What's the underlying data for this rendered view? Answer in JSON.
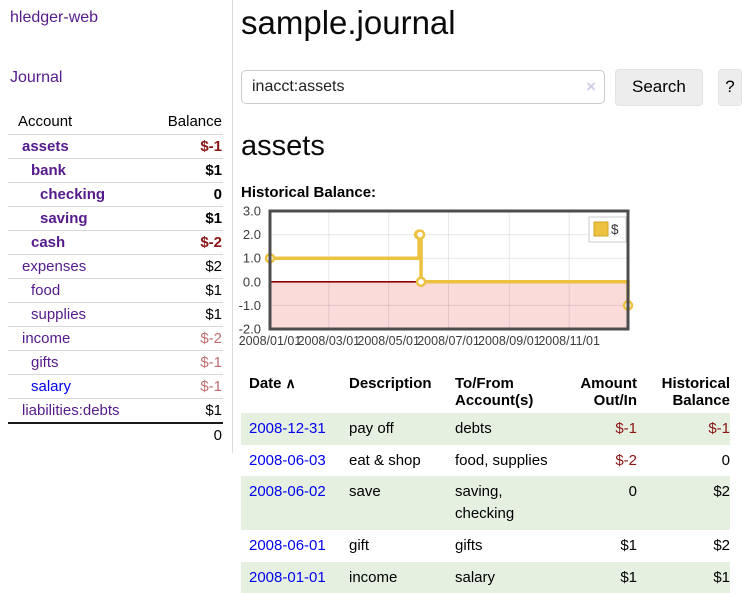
{
  "sidebar": {
    "brand": "hledger-web",
    "nav": {
      "journal": "Journal"
    },
    "accounts_table": {
      "headers": {
        "account": "Account",
        "balance": "Balance"
      },
      "rows": [
        {
          "name": "assets",
          "balance": "$-1"
        },
        {
          "name": "bank",
          "balance": "$1"
        },
        {
          "name": "checking",
          "balance": "0"
        },
        {
          "name": "saving",
          "balance": "$1"
        },
        {
          "name": "cash",
          "balance": "$-2"
        },
        {
          "name": "expenses",
          "balance": "$2"
        },
        {
          "name": "food",
          "balance": "$1"
        },
        {
          "name": "supplies",
          "balance": "$1"
        },
        {
          "name": "income",
          "balance": "$-2"
        },
        {
          "name": "gifts",
          "balance": "$-1"
        },
        {
          "name": "salary",
          "balance": "$-1"
        },
        {
          "name": "liabilities:debts",
          "balance": "$1"
        }
      ],
      "total": "0"
    }
  },
  "main": {
    "title": "sample.journal",
    "search": {
      "value": "inacct:assets",
      "clear_icon": "×",
      "search_button": "Search",
      "help_button": "?"
    },
    "account_heading": "assets",
    "chart_heading": "Historical Balance:",
    "register": {
      "headers": {
        "date": "Date",
        "sort_icon": "∧",
        "description": "Description",
        "accounts": "To/From Account(s)",
        "amount": "Amount Out/In",
        "balance": "Historical Balance"
      },
      "rows": [
        {
          "date": "2008-12-31",
          "description": "pay off",
          "accounts": "debts",
          "amount": "$-1",
          "balance": "$-1"
        },
        {
          "date": "2008-06-03",
          "description": "eat & shop",
          "accounts": "food, supplies",
          "amount": "$-2",
          "balance": "0"
        },
        {
          "date": "2008-06-02",
          "description": "save",
          "accounts": "saving, checking",
          "amount": "0",
          "balance": "$2"
        },
        {
          "date": "2008-06-01",
          "description": "gift",
          "accounts": "gifts",
          "amount": "$1",
          "balance": "$2"
        },
        {
          "date": "2008-01-01",
          "description": "income",
          "accounts": "salary",
          "amount": "$1",
          "balance": "$1"
        }
      ]
    }
  },
  "colors": {
    "link_purple": "#551A8B",
    "link_blue": "#0000EE",
    "negative_strong": "#8b1414",
    "negative_soft": "#bf6f6f",
    "row_green": "#e5f0e0",
    "series_gold": "#EDC240"
  },
  "chart_data": {
    "type": "line",
    "step": true,
    "title": "Historical Balance:",
    "legend": "$",
    "legend_position": "top-right",
    "x_range": [
      "2008/01/01",
      "2008/12/31"
    ],
    "y_range": [
      -2,
      3
    ],
    "x_ticks": [
      "2008/01/01",
      "2008/03/01",
      "2008/05/01",
      "2008/07/01",
      "2008/09/01",
      "2008/11/01"
    ],
    "y_ticks": [
      3.0,
      2.0,
      1.0,
      0.0,
      -1.0,
      -2.0
    ],
    "series": [
      {
        "name": "$",
        "color": "#EDC240",
        "points": [
          [
            "2008/01/01",
            1
          ],
          [
            "2008/06/01",
            2
          ],
          [
            "2008/06/02",
            2
          ],
          [
            "2008/06/03",
            0
          ],
          [
            "2008/12/31",
            -1
          ]
        ]
      }
    ],
    "zero_line_color": "#8b0000",
    "negative_region_color": "#fbdada",
    "grid": true
  }
}
